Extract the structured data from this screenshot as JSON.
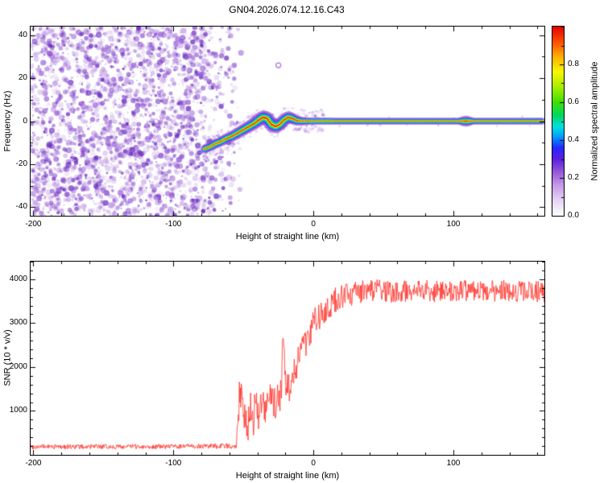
{
  "title": "GN04.2026.074.12.16.C43",
  "chart_data": [
    {
      "type": "heatmap",
      "title": "GN04.2026.074.12.16.C43",
      "xlabel": "Height of straight line (km)",
      "ylabel": "Frequency (Hz)",
      "xlim": [
        -202,
        165
      ],
      "ylim": [
        -44,
        44
      ],
      "xticks": [
        -200,
        -100,
        0,
        100
      ],
      "xtick_minor": 20,
      "xtick_major": 100,
      "yticks": [
        -40,
        -20,
        0,
        20,
        40
      ],
      "ytick_minor": 10,
      "ytick_major": 20,
      "background": "#ffffff",
      "noise": {
        "description": "random purple speckle noise filling panel left of about -60 km",
        "x_end": -60,
        "fade_start": -85,
        "fade_extend": 12,
        "count": 3200,
        "colors": [
          "#5812b8",
          "#8c4ed2",
          "#c4a0e6"
        ]
      },
      "signal_trace": [
        {
          "x": -78,
          "y": -13,
          "w": 1.15
        },
        {
          "x": -74,
          "y": -12,
          "w": 1.2
        },
        {
          "x": -70,
          "y": -10.5,
          "w": 1.25
        },
        {
          "x": -66,
          "y": -9.5,
          "w": 1.25
        },
        {
          "x": -62,
          "y": -8,
          "w": 1.3
        },
        {
          "x": -58,
          "y": -7,
          "w": 1.35
        },
        {
          "x": -54,
          "y": -5.5,
          "w": 1.4
        },
        {
          "x": -50,
          "y": -4,
          "w": 1.45
        },
        {
          "x": -46,
          "y": -2.5,
          "w": 1.5
        },
        {
          "x": -42,
          "y": -1,
          "w": 1.55
        },
        {
          "x": -39,
          "y": 0.5,
          "w": 1.65
        },
        {
          "x": -36,
          "y": 1.8,
          "w": 1.75
        },
        {
          "x": -33,
          "y": 1.2,
          "w": 1.8
        },
        {
          "x": -30,
          "y": -1.5,
          "w": 1.8
        },
        {
          "x": -27,
          "y": -2.5,
          "w": 1.75
        },
        {
          "x": -24,
          "y": -1.5,
          "w": 1.65
        },
        {
          "x": -21,
          "y": 0.5,
          "w": 1.6
        },
        {
          "x": -18,
          "y": 1.8,
          "w": 1.55
        },
        {
          "x": -15,
          "y": 1.2,
          "w": 1.45
        },
        {
          "x": -12,
          "y": 0.3,
          "w": 1.3
        },
        {
          "x": -8,
          "y": 0,
          "w": 1.1
        },
        {
          "x": -3,
          "y": 0,
          "w": 0.95
        },
        {
          "x": 30,
          "y": 0,
          "w": 0.9
        },
        {
          "x": 70,
          "y": 0,
          "w": 0.9
        },
        {
          "x": 104,
          "y": 0,
          "w": 0.9
        },
        {
          "x": 109,
          "y": 0,
          "w": 1.45
        },
        {
          "x": 114,
          "y": 0,
          "w": 0.9
        },
        {
          "x": 165,
          "y": 0,
          "w": 0.9
        }
      ],
      "trace_layers": [
        [
          5.0,
          "rgba(150,80,210,0.28)"
        ],
        [
          3.2,
          "rgba(60,60,255,0.55)"
        ],
        [
          2.3,
          "rgba(0,205,255,0.85)"
        ],
        [
          1.7,
          "rgba(0,225,70,0.95)"
        ],
        [
          1.15,
          "rgba(248,255,0,1)"
        ],
        [
          0.65,
          "rgba(255,35,0,1)"
        ]
      ],
      "trace_fuzz": {
        "x_start": -80,
        "x_end": 8,
        "count": 260,
        "dy_min": 3,
        "dy_max": 14,
        "color": "#9a5fd6"
      },
      "sidebands": {
        "x_start": 0,
        "x_end": 165,
        "dy_min": 3.5,
        "dy_max": 6.5,
        "color": "#9a5fd6"
      },
      "artifact_ring": {
        "x": -25,
        "y": 26,
        "r": 3,
        "color": "#b070e0"
      },
      "colorbar": {
        "label": "Normalized spectral amplitude",
        "range": [
          0,
          1
        ],
        "ticks": [
          0,
          0.2,
          0.4,
          0.6,
          0.8
        ],
        "tick_minor": 0.1,
        "stops": [
          [
            0.0,
            "#ffffff"
          ],
          [
            0.08,
            "#e7d4f5"
          ],
          [
            0.16,
            "#c79ae8"
          ],
          [
            0.24,
            "#9050d8"
          ],
          [
            0.3,
            "#5a20e0"
          ],
          [
            0.36,
            "#2428ff"
          ],
          [
            0.42,
            "#00a0ff"
          ],
          [
            0.47,
            "#00e0e0"
          ],
          [
            0.53,
            "#00d860"
          ],
          [
            0.6,
            "#40e000"
          ],
          [
            0.68,
            "#a8ee00"
          ],
          [
            0.76,
            "#f8f800"
          ],
          [
            0.84,
            "#ffb000"
          ],
          [
            0.91,
            "#ff5800"
          ],
          [
            1.0,
            "#e60000"
          ]
        ]
      }
    },
    {
      "type": "line",
      "xlabel": "Height of straight line (km)",
      "ylabel": "SNR (10 * v/v)",
      "color": "#ff2f26",
      "xlim": [
        -202,
        165
      ],
      "ylim": [
        0,
        4400
      ],
      "xticks": [
        -200,
        -100,
        0,
        100
      ],
      "xtick_minor": 20,
      "xtick_major": 100,
      "yticks": [
        1000,
        2000,
        3000,
        4000
      ],
      "ytick_minor": 200,
      "ytick_major": 1000,
      "sample_step": 0.35,
      "envelope": [
        {
          "x": -202,
          "y": 185,
          "n": 55
        },
        {
          "x": -150,
          "y": 185,
          "n": 55
        },
        {
          "x": -100,
          "y": 190,
          "n": 55
        },
        {
          "x": -62,
          "y": 200,
          "n": 60
        },
        {
          "x": -55,
          "y": 230,
          "n": 90
        },
        {
          "x": -53,
          "y": 1250,
          "n": 450
        },
        {
          "x": -51,
          "y": 1500,
          "n": 380
        },
        {
          "x": -49,
          "y": 800,
          "n": 500
        },
        {
          "x": -47,
          "y": 500,
          "n": 300
        },
        {
          "x": -45,
          "y": 1250,
          "n": 450
        },
        {
          "x": -43,
          "y": 700,
          "n": 350
        },
        {
          "x": -41,
          "y": 1350,
          "n": 400
        },
        {
          "x": -39,
          "y": 900,
          "n": 400
        },
        {
          "x": -37,
          "y": 1150,
          "n": 400
        },
        {
          "x": -34,
          "y": 950,
          "n": 350
        },
        {
          "x": -31,
          "y": 1300,
          "n": 350
        },
        {
          "x": -28,
          "y": 1150,
          "n": 350
        },
        {
          "x": -25,
          "y": 1300,
          "n": 380
        },
        {
          "x": -23,
          "y": 1350,
          "n": 400
        },
        {
          "x": -21.5,
          "y": 2950,
          "n": 250
        },
        {
          "x": -20,
          "y": 1700,
          "n": 400
        },
        {
          "x": -18,
          "y": 1500,
          "n": 380
        },
        {
          "x": -15,
          "y": 1800,
          "n": 380
        },
        {
          "x": -12,
          "y": 2100,
          "n": 380
        },
        {
          "x": -9,
          "y": 2350,
          "n": 380
        },
        {
          "x": -6,
          "y": 2550,
          "n": 360
        },
        {
          "x": -3,
          "y": 2800,
          "n": 360
        },
        {
          "x": 0,
          "y": 3000,
          "n": 340
        },
        {
          "x": 4,
          "y": 3150,
          "n": 320
        },
        {
          "x": 9,
          "y": 3350,
          "n": 300
        },
        {
          "x": 15,
          "y": 3500,
          "n": 300
        },
        {
          "x": 22,
          "y": 3600,
          "n": 280
        },
        {
          "x": 30,
          "y": 3700,
          "n": 260
        },
        {
          "x": 45,
          "y": 3750,
          "n": 250
        },
        {
          "x": 60,
          "y": 3700,
          "n": 250
        },
        {
          "x": 75,
          "y": 3780,
          "n": 250
        },
        {
          "x": 90,
          "y": 3700,
          "n": 250
        },
        {
          "x": 105,
          "y": 3760,
          "n": 250
        },
        {
          "x": 120,
          "y": 3700,
          "n": 250
        },
        {
          "x": 135,
          "y": 3760,
          "n": 250
        },
        {
          "x": 150,
          "y": 3700,
          "n": 250
        },
        {
          "x": 165,
          "y": 3720,
          "n": 250
        }
      ]
    }
  ]
}
